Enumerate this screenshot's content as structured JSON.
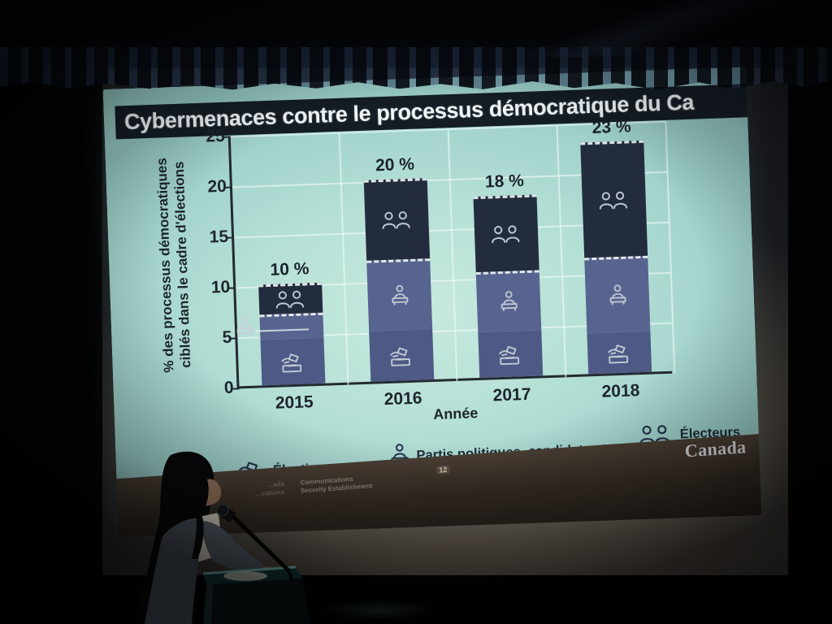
{
  "colors": {
    "slide_bg": "#aedbd3",
    "title_bar": "#141c24",
    "title_text": "#f2f5f6",
    "axis": "#232a31",
    "gridline": "#ecf9f5",
    "segment_elections": "#4d5a85",
    "segment_partis": "#57648f",
    "segment_electeurs": "#232c3d",
    "segment_separator": "#f0f6f3",
    "bar_icon": "#c8d0d9",
    "legend_icon": "#223048",
    "footer_band": "#352c25",
    "canada_text": "#d4d7db"
  },
  "chart_data": {
    "type": "bar",
    "stacked": true,
    "title": "Cybermenaces contre le processus démocratique du Ca",
    "categories": [
      "2015",
      "2016",
      "2017",
      "2018"
    ],
    "series": [
      {
        "name": "Élections",
        "icon": "ballot-box-hand-icon",
        "values": [
          4.5,
          5,
          4.5,
          4
        ]
      },
      {
        "name": "Partis politiques, candidats et personnel",
        "icon": "person-at-podium-icon",
        "values": [
          2.5,
          7,
          6,
          7.5
        ]
      },
      {
        "name": "Électeurs",
        "icon": "two-voters-icon",
        "values": [
          3,
          8,
          7.5,
          11.5
        ]
      }
    ],
    "totals": [
      10,
      20,
      18,
      23
    ],
    "total_labels": [
      "10 %",
      "20 %",
      "18 %",
      "23 %"
    ],
    "xlabel": "Année",
    "ylabel": "% des processus démocratiques ciblés dans le cadre d'élections",
    "ylabel_lines": [
      "% des processus démocratiques",
      "ciblés dans le cadre d'élections"
    ],
    "ylim": [
      0,
      25
    ],
    "yticks": [
      0,
      5,
      10,
      15,
      20,
      25
    ],
    "grid": true,
    "legend_position": "bottom"
  },
  "legend": [
    {
      "icon": "ballot-box-hand-icon",
      "label": "Élections"
    },
    {
      "icon": "person-at-podium-icon",
      "label": "Partis politiques, candidats et personnel"
    },
    {
      "icon": "two-voters-icon",
      "label": "Électeurs"
    }
  ],
  "footer": {
    "cse_left_fragment_line1": "…ada",
    "cse_left_fragment_line2": "…cations",
    "cse_right_line1": "Communications",
    "cse_right_line2": "Security Establishment",
    "page_number": "12",
    "canada_wordmark": "Canada"
  }
}
